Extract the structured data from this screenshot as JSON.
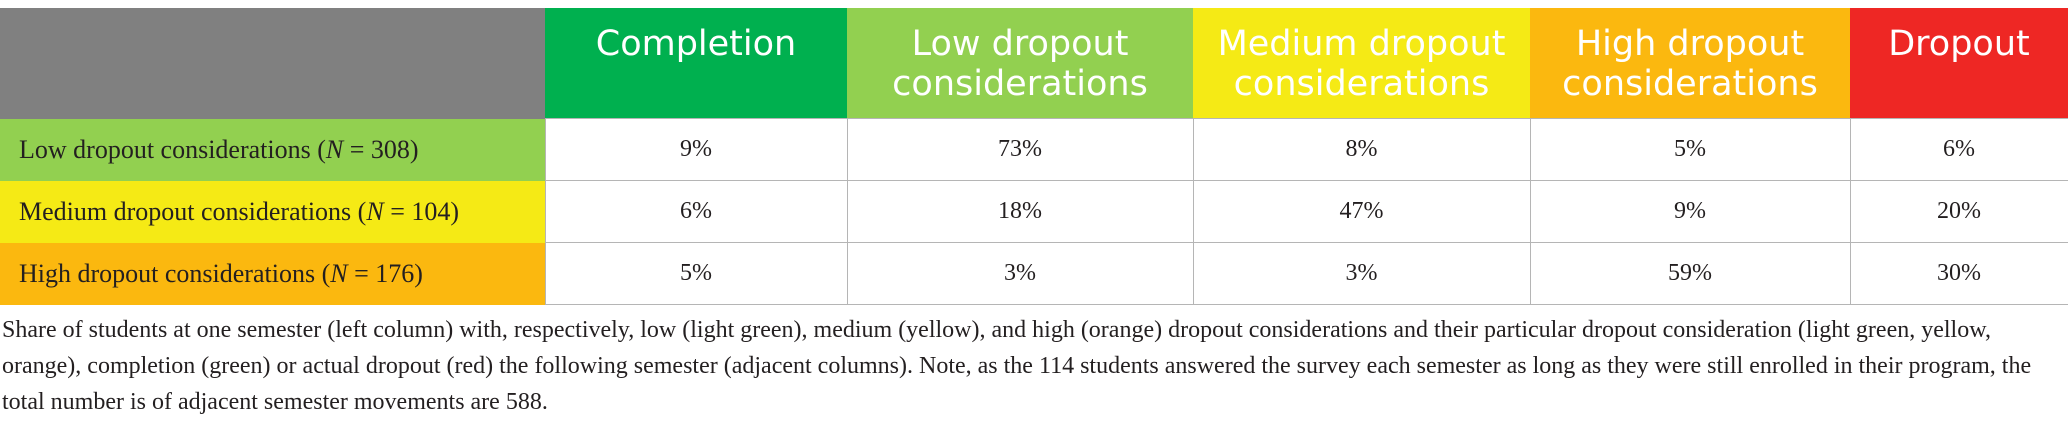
{
  "colors": {
    "corner": "#808080",
    "completion": "#00b04f",
    "low": "#92d050",
    "medium": "#f5ea15",
    "high": "#fbb80f",
    "dropout": "#ee2724"
  },
  "table": {
    "columns": [
      "Completion",
      "Low dropout considerations",
      "Medium dropout considerations",
      "High dropout considerations",
      "Dropout"
    ],
    "rows": [
      {
        "label_prefix": "Low dropout considerations (",
        "n_symbol": "N",
        "n_value": " = 308)",
        "cells": [
          "9%",
          "73%",
          "8%",
          "5%",
          "6%"
        ]
      },
      {
        "label_prefix": "Medium dropout considerations (",
        "n_symbol": "N",
        "n_value": " = 104)",
        "cells": [
          "6%",
          "18%",
          "47%",
          "9%",
          "20%"
        ]
      },
      {
        "label_prefix": "High dropout considerations (",
        "n_symbol": "N",
        "n_value": " = 176)",
        "cells": [
          "5%",
          "3%",
          "3%",
          "59%",
          "30%"
        ]
      }
    ]
  },
  "caption": "Share of students at one semester (left column) with, respectively, low (light green), medium (yellow), and high (orange) dropout considerations and their particular dropout consideration (light green, yellow, orange), completion (green) or actual dropout (red) the following semester (adjacent columns). Note, as the 114 students answered the survey each semester as long as they were still enrolled in their program, the total number is of adjacent semester movements are 588."
}
